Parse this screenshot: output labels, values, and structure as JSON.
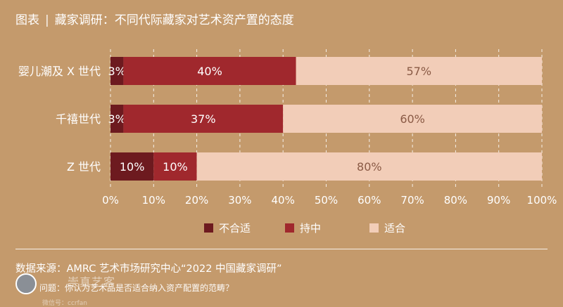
{
  "header": {
    "label": "图表",
    "separator": "|",
    "title": "藏家调研：不同代际藏家对艺术资产置的态度"
  },
  "chart_data": {
    "type": "bar",
    "orientation": "horizontal",
    "stacked": true,
    "categories": [
      "婴儿潮及 X 世代",
      "千禧世代",
      "Z 世代"
    ],
    "series": [
      {
        "name": "不合适",
        "values": [
          3,
          3,
          10
        ],
        "labels": [
          "3%",
          "3%",
          "10%"
        ],
        "color": "#6d1a1f"
      },
      {
        "name": "持中",
        "values": [
          40,
          37,
          10
        ],
        "labels": [
          "40%",
          "37%",
          "10%"
        ],
        "color": "#a0282d"
      },
      {
        "name": "适合",
        "values": [
          57,
          60,
          80
        ],
        "labels": [
          "57%",
          "60%",
          "80%"
        ],
        "color": "#f2cdb8"
      }
    ],
    "xlim": [
      0,
      100
    ],
    "xticks": [
      "0%",
      "10%",
      "20%",
      "30%",
      "40%",
      "50%",
      "60%",
      "70%",
      "80%",
      "90%",
      "100%"
    ],
    "legend_position": "bottom",
    "grid": true
  },
  "footer": {
    "source": "数据来源：AMRC 艺术市场研究中心“2022 中国藏家调研”",
    "note": "问题：你认为艺术品是否适合纳入资产配置的范畴？",
    "watermark": "崇真艺客",
    "watermark_sub": "微信号：ccrfan"
  }
}
